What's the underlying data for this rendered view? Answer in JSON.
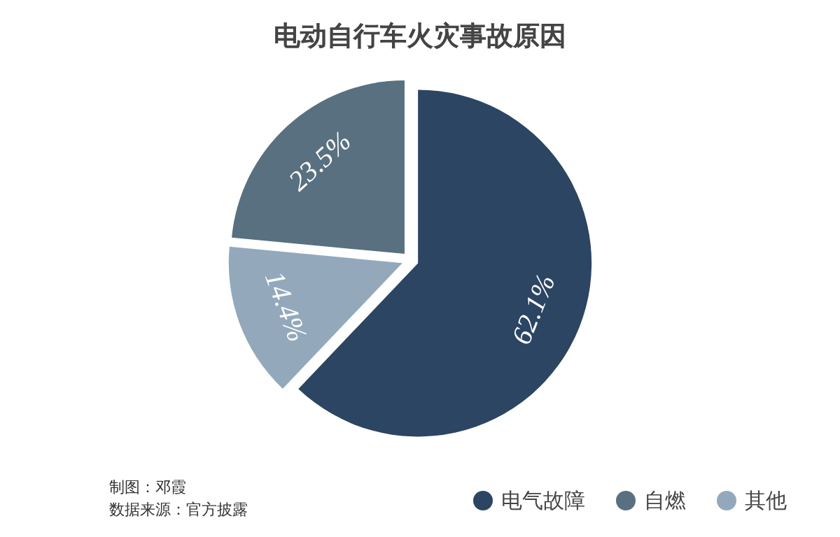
{
  "chart_data": {
    "type": "pie",
    "title": "电动自行车火灾事故原因",
    "categories": [
      "电气故障",
      "自燃",
      "其他"
    ],
    "values": [
      62.1,
      23.5,
      14.4
    ],
    "colors": [
      "#2b4562",
      "#587080",
      "#93a9bb"
    ],
    "value_labels": [
      "62.1%",
      "23.5%",
      "14.4%"
    ],
    "legend": "bottom right",
    "annotations": [
      "制图：邓霞",
      "数据来源：官方披露"
    ]
  }
}
